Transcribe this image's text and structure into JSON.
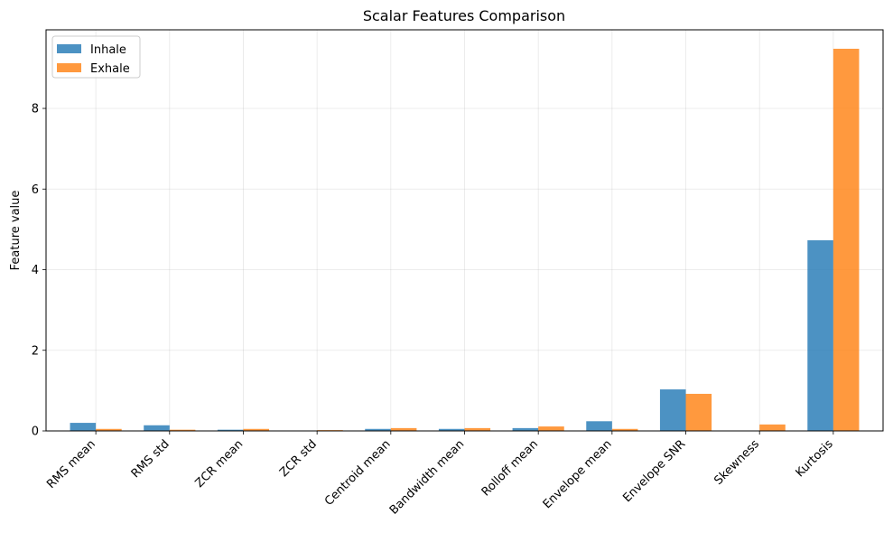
{
  "chart_data": {
    "type": "bar",
    "title": "Scalar Features Comparison",
    "xlabel": "",
    "ylabel": "Feature value",
    "categories": [
      "RMS mean",
      "RMS std",
      "ZCR mean",
      "ZCR std",
      "Centroid mean",
      "Bandwidth mean",
      "Rolloff mean",
      "Envelope mean",
      "Envelope SNR",
      "Skewness",
      "Kurtosis"
    ],
    "series": [
      {
        "name": "Inhale",
        "color": "#1f77b4",
        "values": [
          0.2,
          0.14,
          0.03,
          0.005,
          0.05,
          0.05,
          0.07,
          0.24,
          1.03,
          0.0,
          4.73
        ]
      },
      {
        "name": "Exhale",
        "color": "#ff7f0e",
        "values": [
          0.05,
          0.03,
          0.05,
          0.02,
          0.07,
          0.07,
          0.11,
          0.05,
          0.92,
          0.16,
          9.48
        ]
      }
    ],
    "ylim": [
      0,
      9.95
    ],
    "yticks": [
      0,
      2,
      4,
      6,
      8
    ],
    "grid": true,
    "legend_position": "top-left"
  }
}
